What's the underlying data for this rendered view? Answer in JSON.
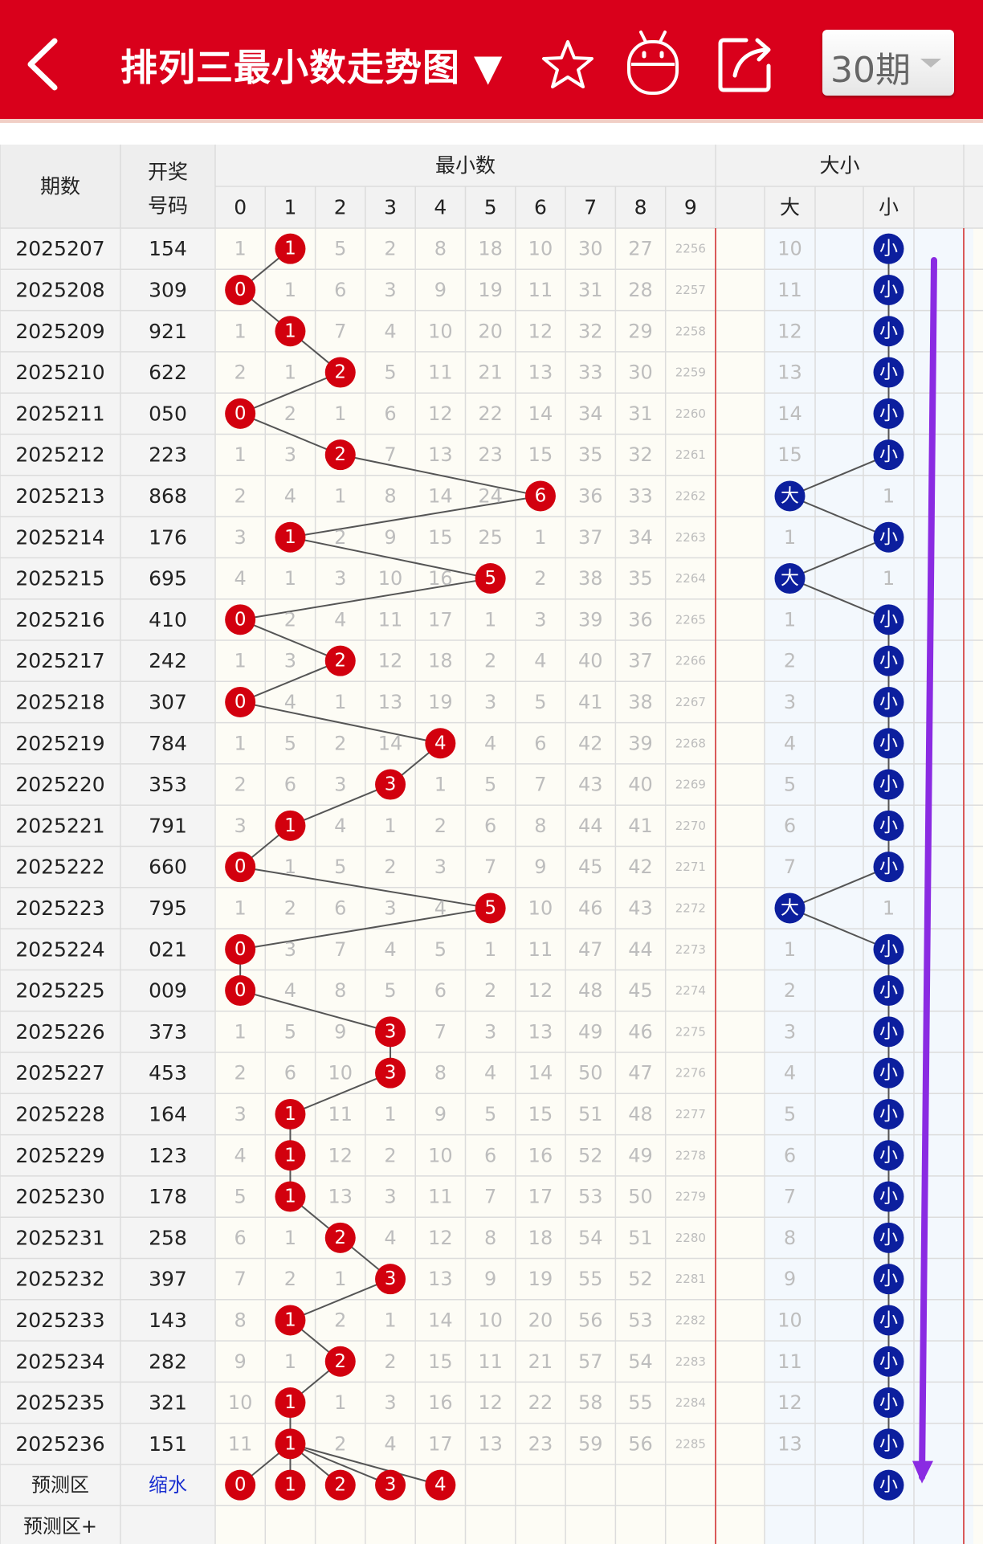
{
  "header": {
    "title": "排列三最小数走势图 ▼",
    "period_select": "30期",
    "icons": [
      "back-icon",
      "star-icon",
      "robot-icon",
      "share-icon"
    ]
  },
  "table": {
    "col_issue": "期数",
    "col_draw_line1": "开奖",
    "col_draw_line2": "号码",
    "group_min": "最小数",
    "group_size": "大小",
    "digit_headers": [
      "0",
      "1",
      "2",
      "3",
      "4",
      "5",
      "6",
      "7",
      "8",
      "9"
    ],
    "size_headers": [
      "大",
      "",
      "小",
      ""
    ],
    "rows": [
      {
        "issue": "2025207",
        "draw": "154",
        "min": 1,
        "omit": [
          "1",
          "",
          "5",
          "2",
          "8",
          "18",
          "10",
          "30",
          "27",
          "2256"
        ],
        "size": "小",
        "size_omit": [
          "10",
          ""
        ]
      },
      {
        "issue": "2025208",
        "draw": "309",
        "min": 0,
        "omit": [
          "",
          "1",
          "6",
          "3",
          "9",
          "19",
          "11",
          "31",
          "28",
          "2257"
        ],
        "size": "小",
        "size_omit": [
          "11",
          ""
        ]
      },
      {
        "issue": "2025209",
        "draw": "921",
        "min": 1,
        "omit": [
          "1",
          "",
          "7",
          "4",
          "10",
          "20",
          "12",
          "32",
          "29",
          "2258"
        ],
        "size": "小",
        "size_omit": [
          "12",
          ""
        ]
      },
      {
        "issue": "2025210",
        "draw": "622",
        "min": 2,
        "omit": [
          "2",
          "1",
          "",
          "5",
          "11",
          "21",
          "13",
          "33",
          "30",
          "2259"
        ],
        "size": "小",
        "size_omit": [
          "13",
          ""
        ]
      },
      {
        "issue": "2025211",
        "draw": "050",
        "min": 0,
        "omit": [
          "",
          "2",
          "1",
          "6",
          "12",
          "22",
          "14",
          "34",
          "31",
          "2260"
        ],
        "size": "小",
        "size_omit": [
          "14",
          ""
        ]
      },
      {
        "issue": "2025212",
        "draw": "223",
        "min": 2,
        "omit": [
          "1",
          "3",
          "",
          "7",
          "13",
          "23",
          "15",
          "35",
          "32",
          "2261"
        ],
        "size": "小",
        "size_omit": [
          "15",
          ""
        ]
      },
      {
        "issue": "2025213",
        "draw": "868",
        "min": 6,
        "omit": [
          "2",
          "4",
          "1",
          "8",
          "14",
          "24",
          "",
          "36",
          "33",
          "2262"
        ],
        "size": "大",
        "size_omit": [
          "",
          "1"
        ]
      },
      {
        "issue": "2025214",
        "draw": "176",
        "min": 1,
        "omit": [
          "3",
          "",
          "2",
          "9",
          "15",
          "25",
          "1",
          "37",
          "34",
          "2263"
        ],
        "size": "小",
        "size_omit": [
          "1",
          ""
        ]
      },
      {
        "issue": "2025215",
        "draw": "695",
        "min": 5,
        "omit": [
          "4",
          "1",
          "3",
          "10",
          "16",
          "",
          "2",
          "38",
          "35",
          "2264"
        ],
        "size": "大",
        "size_omit": [
          "",
          "1"
        ]
      },
      {
        "issue": "2025216",
        "draw": "410",
        "min": 0,
        "omit": [
          "",
          "2",
          "4",
          "11",
          "17",
          "1",
          "3",
          "39",
          "36",
          "2265"
        ],
        "size": "小",
        "size_omit": [
          "1",
          ""
        ]
      },
      {
        "issue": "2025217",
        "draw": "242",
        "min": 2,
        "omit": [
          "1",
          "3",
          "",
          "12",
          "18",
          "2",
          "4",
          "40",
          "37",
          "2266"
        ],
        "size": "小",
        "size_omit": [
          "2",
          ""
        ]
      },
      {
        "issue": "2025218",
        "draw": "307",
        "min": 0,
        "omit": [
          "",
          "4",
          "1",
          "13",
          "19",
          "3",
          "5",
          "41",
          "38",
          "2267"
        ],
        "size": "小",
        "size_omit": [
          "3",
          ""
        ]
      },
      {
        "issue": "2025219",
        "draw": "784",
        "min": 4,
        "omit": [
          "1",
          "5",
          "2",
          "14",
          "",
          "4",
          "6",
          "42",
          "39",
          "2268"
        ],
        "size": "小",
        "size_omit": [
          "4",
          ""
        ]
      },
      {
        "issue": "2025220",
        "draw": "353",
        "min": 3,
        "omit": [
          "2",
          "6",
          "3",
          "",
          "1",
          "5",
          "7",
          "43",
          "40",
          "2269"
        ],
        "size": "小",
        "size_omit": [
          "5",
          ""
        ]
      },
      {
        "issue": "2025221",
        "draw": "791",
        "min": 1,
        "omit": [
          "3",
          "",
          "4",
          "1",
          "2",
          "6",
          "8",
          "44",
          "41",
          "2270"
        ],
        "size": "小",
        "size_omit": [
          "6",
          ""
        ]
      },
      {
        "issue": "2025222",
        "draw": "660",
        "min": 0,
        "omit": [
          "",
          "1",
          "5",
          "2",
          "3",
          "7",
          "9",
          "45",
          "42",
          "2271"
        ],
        "size": "小",
        "size_omit": [
          "7",
          ""
        ]
      },
      {
        "issue": "2025223",
        "draw": "795",
        "min": 5,
        "omit": [
          "1",
          "2",
          "6",
          "3",
          "4",
          "",
          "10",
          "46",
          "43",
          "2272"
        ],
        "size": "大",
        "size_omit": [
          "",
          "1"
        ]
      },
      {
        "issue": "2025224",
        "draw": "021",
        "min": 0,
        "omit": [
          "",
          "3",
          "7",
          "4",
          "5",
          "1",
          "11",
          "47",
          "44",
          "2273"
        ],
        "size": "小",
        "size_omit": [
          "1",
          ""
        ]
      },
      {
        "issue": "2025225",
        "draw": "009",
        "min": 0,
        "omit": [
          "",
          "4",
          "8",
          "5",
          "6",
          "2",
          "12",
          "48",
          "45",
          "2274"
        ],
        "size": "小",
        "size_omit": [
          "2",
          ""
        ]
      },
      {
        "issue": "2025226",
        "draw": "373",
        "min": 3,
        "omit": [
          "1",
          "5",
          "9",
          "",
          "7",
          "3",
          "13",
          "49",
          "46",
          "2275"
        ],
        "size": "小",
        "size_omit": [
          "3",
          ""
        ]
      },
      {
        "issue": "2025227",
        "draw": "453",
        "min": 3,
        "omit": [
          "2",
          "6",
          "10",
          "",
          "8",
          "4",
          "14",
          "50",
          "47",
          "2276"
        ],
        "size": "小",
        "size_omit": [
          "4",
          ""
        ]
      },
      {
        "issue": "2025228",
        "draw": "164",
        "min": 1,
        "omit": [
          "3",
          "",
          "11",
          "1",
          "9",
          "5",
          "15",
          "51",
          "48",
          "2277"
        ],
        "size": "小",
        "size_omit": [
          "5",
          ""
        ]
      },
      {
        "issue": "2025229",
        "draw": "123",
        "min": 1,
        "omit": [
          "4",
          "",
          "12",
          "2",
          "10",
          "6",
          "16",
          "52",
          "49",
          "2278"
        ],
        "size": "小",
        "size_omit": [
          "6",
          ""
        ]
      },
      {
        "issue": "2025230",
        "draw": "178",
        "min": 1,
        "omit": [
          "5",
          "",
          "13",
          "3",
          "11",
          "7",
          "17",
          "53",
          "50",
          "2279"
        ],
        "size": "小",
        "size_omit": [
          "7",
          ""
        ]
      },
      {
        "issue": "2025231",
        "draw": "258",
        "min": 2,
        "omit": [
          "6",
          "1",
          "",
          "4",
          "12",
          "8",
          "18",
          "54",
          "51",
          "2280"
        ],
        "size": "小",
        "size_omit": [
          "8",
          ""
        ]
      },
      {
        "issue": "2025232",
        "draw": "397",
        "min": 3,
        "omit": [
          "7",
          "2",
          "1",
          "",
          "13",
          "9",
          "19",
          "55",
          "52",
          "2281"
        ],
        "size": "小",
        "size_omit": [
          "9",
          ""
        ]
      },
      {
        "issue": "2025233",
        "draw": "143",
        "min": 1,
        "omit": [
          "8",
          "",
          "2",
          "1",
          "14",
          "10",
          "20",
          "56",
          "53",
          "2282"
        ],
        "size": "小",
        "size_omit": [
          "10",
          ""
        ]
      },
      {
        "issue": "2025234",
        "draw": "282",
        "min": 2,
        "omit": [
          "9",
          "1",
          "",
          "2",
          "15",
          "11",
          "21",
          "57",
          "54",
          "2283"
        ],
        "size": "小",
        "size_omit": [
          "11",
          ""
        ]
      },
      {
        "issue": "2025235",
        "draw": "321",
        "min": 1,
        "omit": [
          "10",
          "",
          "1",
          "3",
          "16",
          "12",
          "22",
          "58",
          "55",
          "2284"
        ],
        "size": "小",
        "size_omit": [
          "12",
          ""
        ]
      },
      {
        "issue": "2025236",
        "draw": "151",
        "min": 1,
        "omit": [
          "11",
          "",
          "2",
          "4",
          "17",
          "13",
          "23",
          "59",
          "56",
          "2285"
        ],
        "size": "小",
        "size_omit": [
          "13",
          ""
        ]
      }
    ],
    "prediction": {
      "label": "预测区",
      "link": "缩水",
      "balls": [
        "0",
        "1",
        "2",
        "3",
        "4"
      ],
      "size": "小"
    },
    "prediction_plus": {
      "label": "预测区+"
    }
  },
  "colors": {
    "header_red": "#d9001b",
    "ball_red": "#d2000e",
    "ball_blue": "#0c1f9e",
    "arrow_purple": "#8a2be2",
    "grid_line": "#dcdcdc",
    "red_divider": "#d95a5a"
  }
}
